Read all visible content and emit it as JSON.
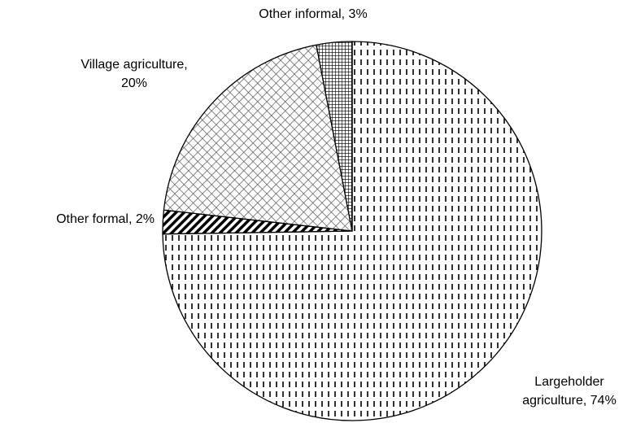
{
  "chart_data": {
    "type": "pie",
    "labels": [
      [
        "Largeholder",
        "agriculture, 74%"
      ],
      [
        "Other formal, 2%"
      ],
      [
        "Village agriculture,",
        "20%"
      ],
      [
        "Other informal, 3%"
      ]
    ],
    "values": [
      74,
      2,
      20,
      3
    ]
  }
}
